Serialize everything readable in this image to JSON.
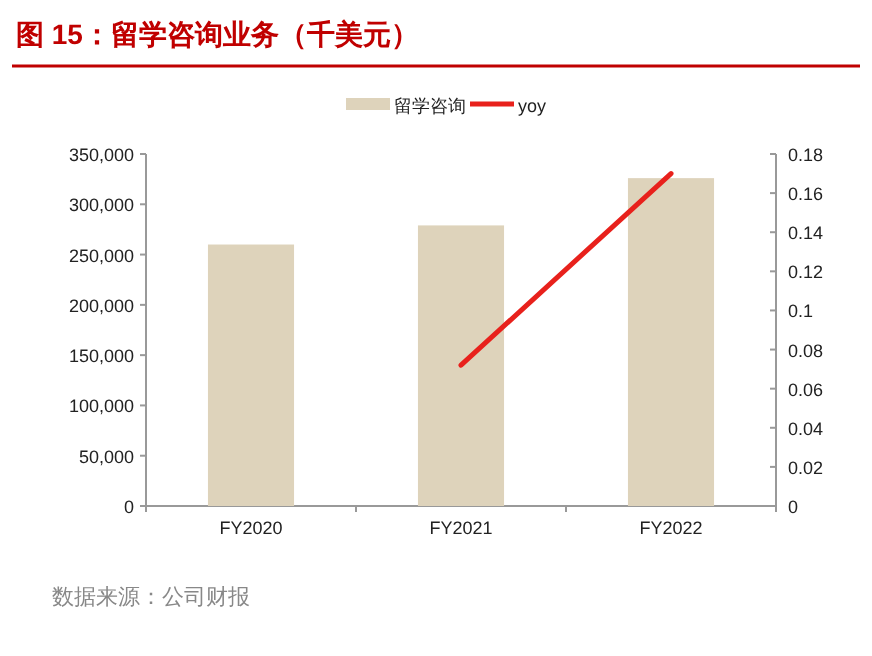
{
  "chart_data": {
    "type": "bar",
    "title": "图 15：留学咨询业务（千美元）",
    "categories": [
      "FY2020",
      "FY2021",
      "FY2022"
    ],
    "series": [
      {
        "name": "留学咨询",
        "color": "#ded3bb",
        "values": [
          260000,
          279000,
          326000
        ]
      },
      {
        "name": "yoy",
        "type": "line",
        "axis": "y2",
        "color": "#e8211c",
        "values": [
          null,
          0.072,
          0.17
        ]
      }
    ],
    "ylim": [
      0,
      350000
    ],
    "yticks": [
      0,
      {
        "value": 50000,
        "label": "50,000"
      },
      {
        "value": 100000,
        "label": "100,000"
      },
      {
        "value": 150000,
        "label": "150,000"
      },
      {
        "value": 200000,
        "label": "200,000"
      },
      {
        "value": 250000,
        "label": "250,000"
      },
      {
        "value": 300000,
        "label": "300,000"
      },
      {
        "value": 350000,
        "label": "350,000"
      }
    ],
    "y2lim": [
      0,
      0.18
    ],
    "y2ticks": [
      0,
      0.02,
      0.04,
      0.06,
      0.08,
      0.1,
      0.12,
      0.14,
      0.16,
      0.18
    ],
    "legend": "top",
    "annotations": [
      "数据来源：公司财报"
    ]
  }
}
